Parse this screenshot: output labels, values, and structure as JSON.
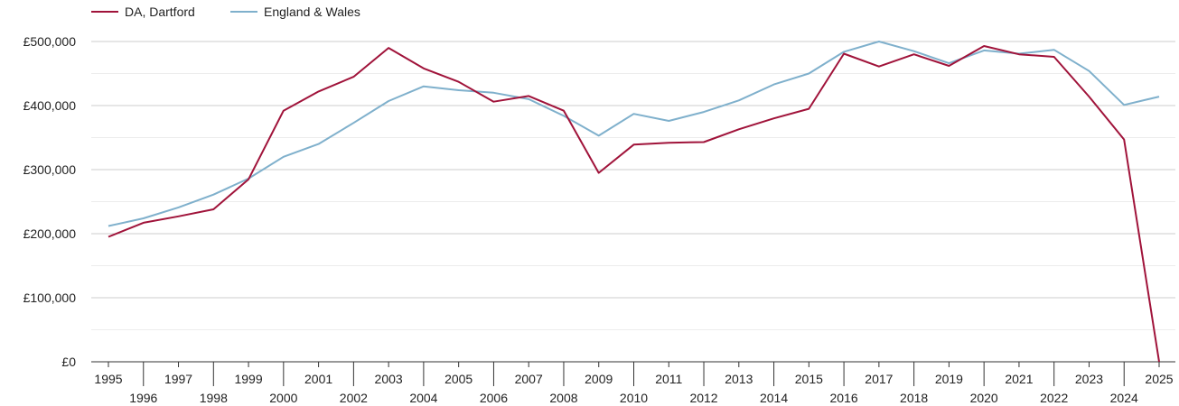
{
  "chart_data": {
    "type": "line",
    "title": "",
    "xlabel": "",
    "ylabel": "",
    "x": [
      1995,
      1996,
      1997,
      1998,
      1999,
      2000,
      2001,
      2002,
      2003,
      2004,
      2005,
      2006,
      2007,
      2008,
      2009,
      2010,
      2011,
      2012,
      2013,
      2014,
      2015,
      2016,
      2017,
      2018,
      2019,
      2020,
      2021,
      2022,
      2023,
      2024,
      2025
    ],
    "xlim": [
      1995,
      2025
    ],
    "ylim": [
      0,
      500000
    ],
    "y_ticks": [
      0,
      100000,
      200000,
      300000,
      400000,
      500000
    ],
    "y_tick_labels": [
      "£0",
      "£100,000",
      "£200,000",
      "£300,000",
      "£400,000",
      "£500,000"
    ],
    "x_tick_labels": [
      "1995",
      "1996",
      "1997",
      "1998",
      "1999",
      "2000",
      "2001",
      "2002",
      "2003",
      "2004",
      "2005",
      "2006",
      "2007",
      "2008",
      "2009",
      "2010",
      "2011",
      "2012",
      "2013",
      "2014",
      "2015",
      "2016",
      "2017",
      "2018",
      "2019",
      "2020",
      "2021",
      "2022",
      "2023",
      "2024",
      "2025"
    ],
    "grid": true,
    "legend_position": "top-left",
    "series": [
      {
        "name": "DA, Dartford",
        "color": "#a0133a",
        "values": [
          195000,
          217000,
          227000,
          238000,
          285000,
          392000,
          422000,
          445000,
          490000,
          458000,
          437000,
          406000,
          415000,
          392000,
          295000,
          339000,
          342000,
          343000,
          363000,
          380000,
          395000,
          481000,
          461000,
          480000,
          462000,
          493000,
          480000,
          476000,
          414000,
          347000,
          0
        ]
      },
      {
        "name": "England & Wales",
        "color": "#7fb0cc",
        "values": [
          212000,
          224000,
          241000,
          261000,
          286000,
          320000,
          340000,
          373000,
          407000,
          430000,
          424000,
          420000,
          410000,
          384000,
          353000,
          387000,
          376000,
          390000,
          408000,
          433000,
          450000,
          484000,
          500000,
          485000,
          466000,
          486000,
          481000,
          487000,
          454000,
          401000,
          414000
        ]
      }
    ]
  }
}
